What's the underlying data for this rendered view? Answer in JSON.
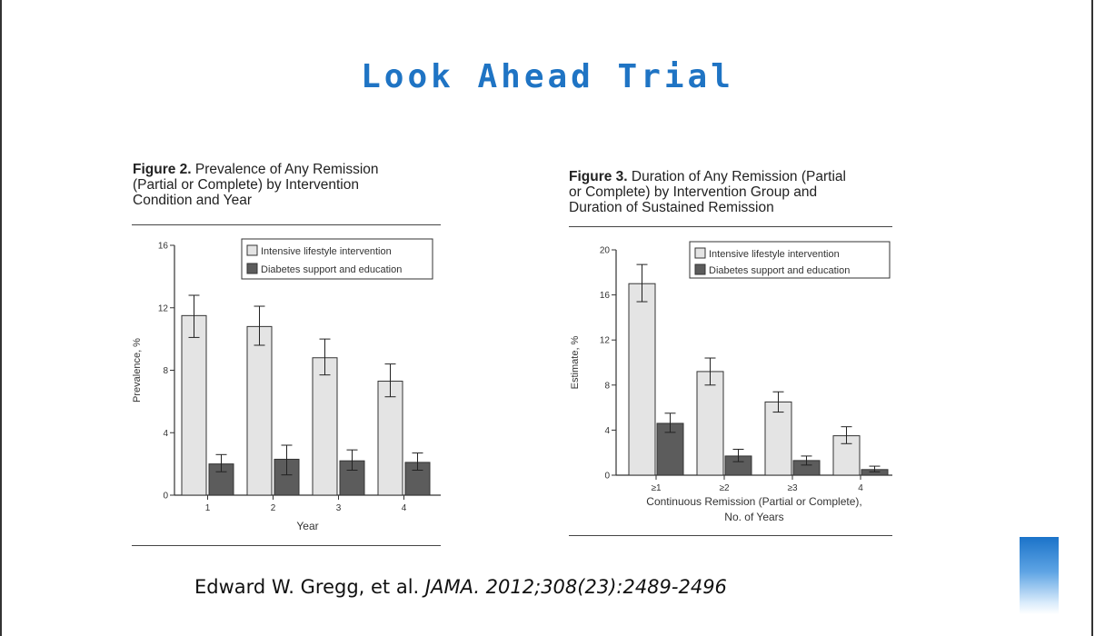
{
  "slide": {
    "title": "Look Ahead Trial",
    "citation_authors": "Edward W. Gregg, et al.",
    "citation_journal": "JAMA. 2012;308(23):2489-2496",
    "title_color": "#1f74c4"
  },
  "figures": [
    {
      "caption_lead": "Figure 2.",
      "caption_line1": " Prevalence of Any Remission",
      "caption_line2": "(Partial or Complete) by Intervention",
      "caption_line3": "Condition and Year"
    },
    {
      "caption_lead": "Figure 3.",
      "caption_line1": " Duration of Any Remission (Partial",
      "caption_line2": "or Complete) by Intervention Group and",
      "caption_line3": "Duration of Sustained Remission"
    }
  ],
  "chart_data": [
    {
      "type": "bar",
      "title": "",
      "xlabel": "Year",
      "ylabel": "Prevalence, %",
      "categories": [
        "1",
        "2",
        "3",
        "4"
      ],
      "ylim": [
        0,
        16
      ],
      "yticks": [
        "0",
        "4",
        "8",
        "12",
        "16"
      ],
      "legend_position": "top-right",
      "grid": false,
      "series": [
        {
          "name": "Intensive lifestyle intervention",
          "color": "#e4e4e4",
          "values": [
            11.5,
            10.8,
            8.8,
            7.3
          ],
          "err_low": [
            10.1,
            9.6,
            7.7,
            6.3
          ],
          "err_high": [
            12.8,
            12.1,
            10.0,
            8.4
          ]
        },
        {
          "name": "Diabetes support and education",
          "color": "#5c5c5c",
          "values": [
            2.0,
            2.3,
            2.2,
            2.1
          ],
          "err_low": [
            1.5,
            1.3,
            1.6,
            1.6
          ],
          "err_high": [
            2.6,
            3.2,
            2.9,
            2.7
          ]
        }
      ]
    },
    {
      "type": "bar",
      "title": "",
      "xlabel_line1": "Continuous Remission (Partial or Complete),",
      "xlabel_line2": "No. of Years",
      "ylabel": "Estimate, %",
      "categories": [
        "≥1",
        "≥2",
        "≥3",
        "4"
      ],
      "ylim": [
        0,
        20
      ],
      "yticks": [
        "0",
        "4",
        "8",
        "12",
        "16",
        "20"
      ],
      "legend_position": "top-right",
      "grid": false,
      "series": [
        {
          "name": "Intensive lifestyle intervention",
          "color": "#e4e4e4",
          "values": [
            17.0,
            9.2,
            6.5,
            3.5
          ],
          "err_low": [
            15.4,
            8.0,
            5.6,
            2.8
          ],
          "err_high": [
            18.7,
            10.4,
            7.4,
            4.3
          ]
        },
        {
          "name": "Diabetes support and education",
          "color": "#5c5c5c",
          "values": [
            4.6,
            1.7,
            1.3,
            0.5
          ],
          "err_low": [
            3.8,
            1.2,
            0.9,
            0.3
          ],
          "err_high": [
            5.5,
            2.3,
            1.7,
            0.8
          ]
        }
      ]
    }
  ]
}
